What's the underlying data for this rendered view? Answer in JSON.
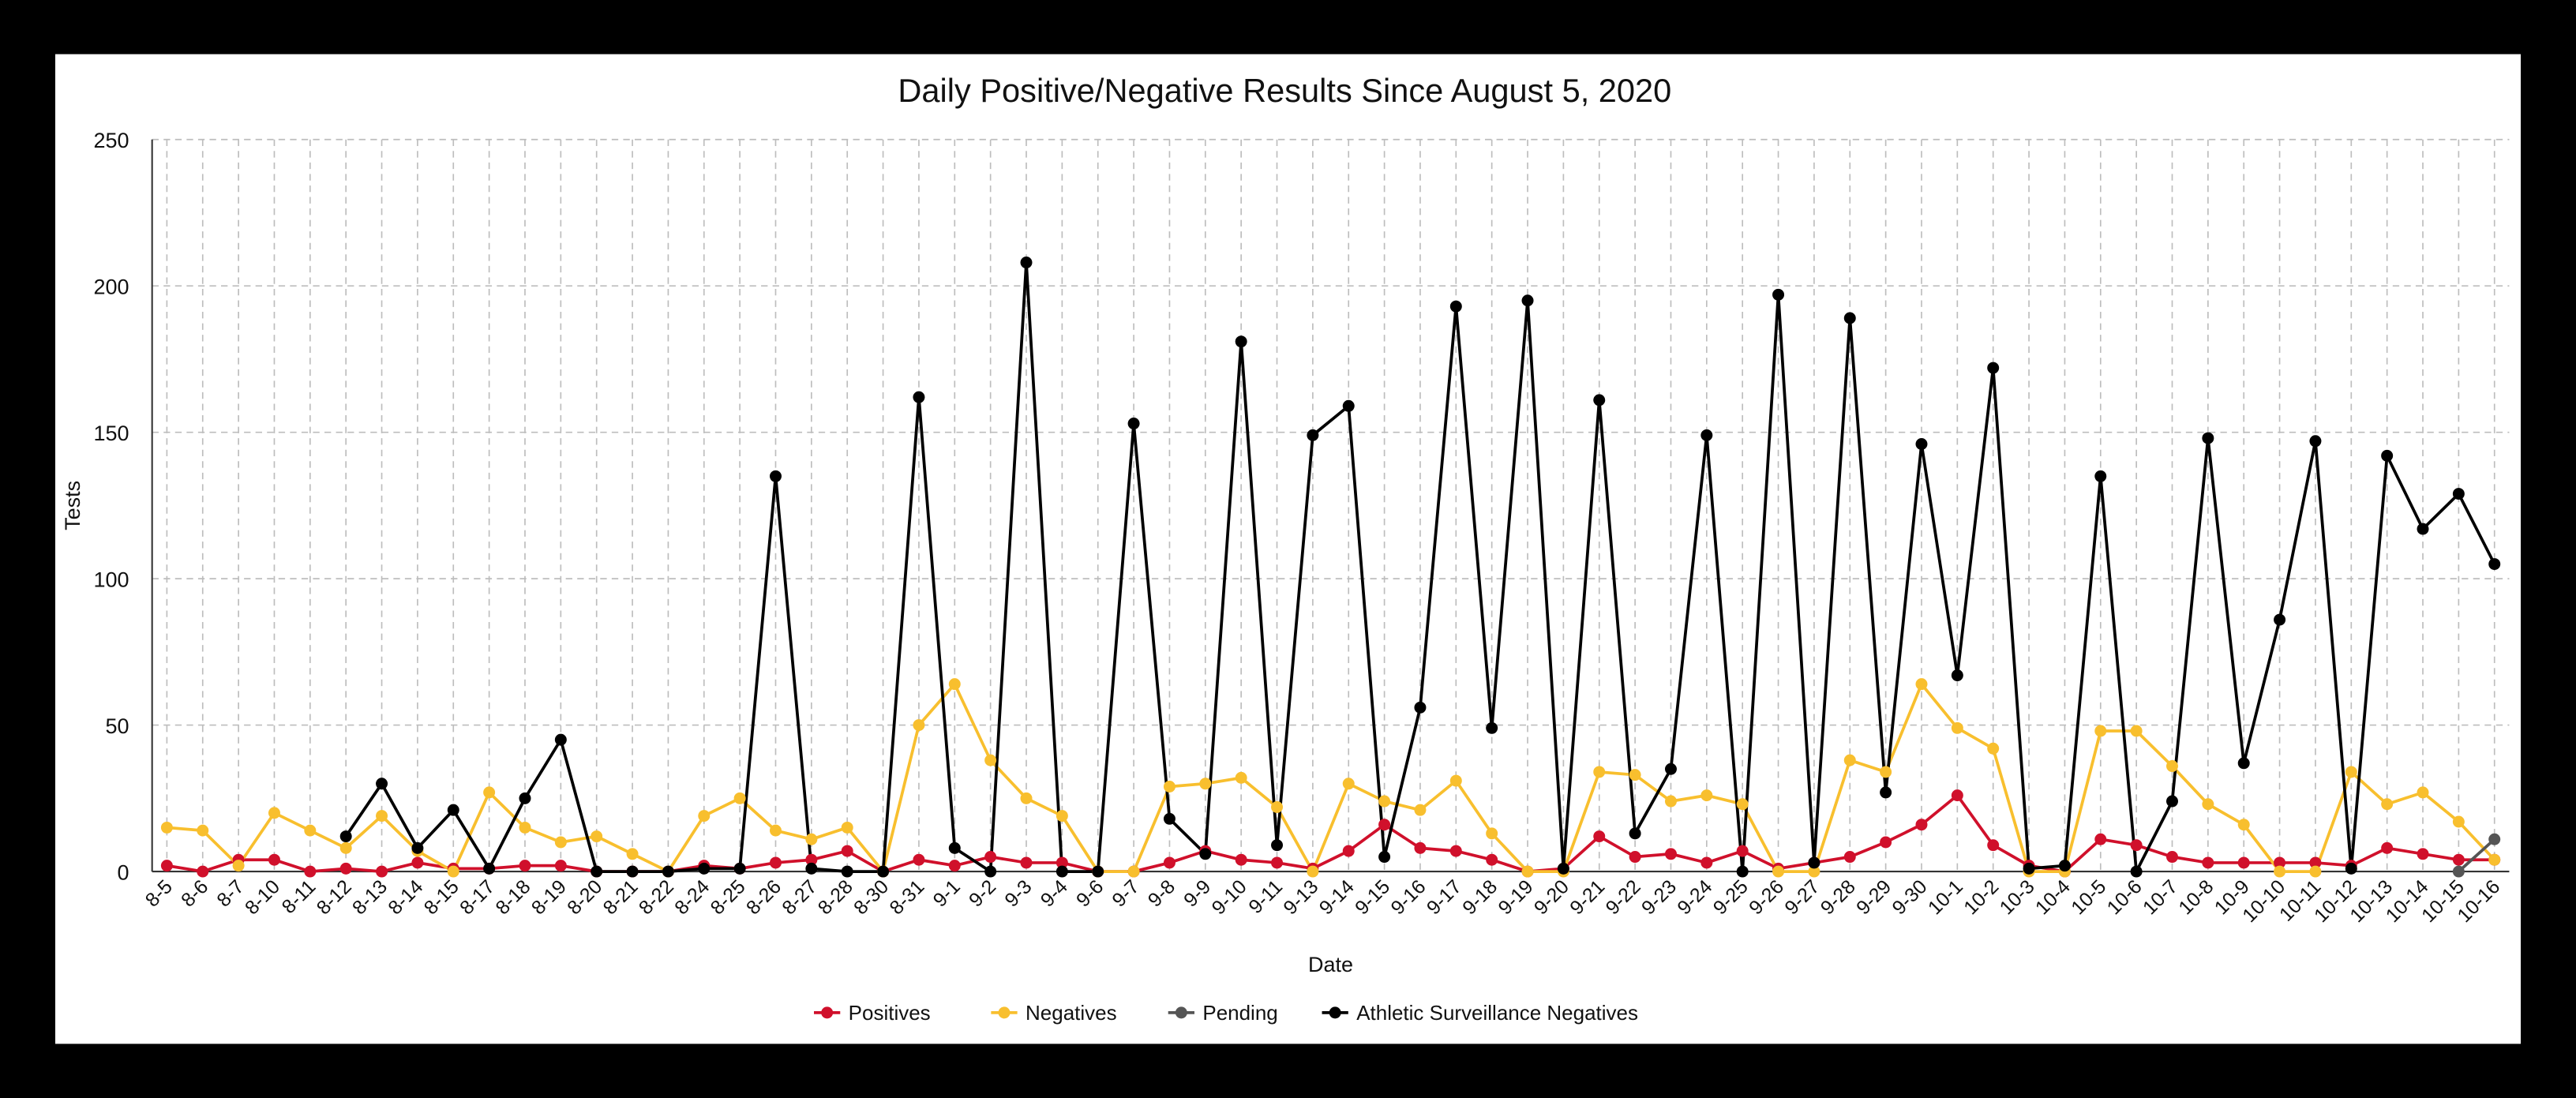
{
  "chart_data": {
    "type": "line",
    "title": "Daily Positive/Negative Results Since August 5, 2020",
    "x_label": "Date",
    "y_label": "Tests",
    "categories": [
      "8-5",
      "8-6",
      "8-7",
      "8-10",
      "8-11",
      "8-12",
      "8-13",
      "8-14",
      "8-15",
      "8-17",
      "8-18",
      "8-19",
      "8-20",
      "8-21",
      "8-22",
      "8-24",
      "8-25",
      "8-26",
      "8-27",
      "8-28",
      "8-30",
      "8-31",
      "9-1",
      "9-2",
      "9-3",
      "9-4",
      "9-6",
      "9-7",
      "9-8",
      "9-9",
      "9-10",
      "9-11",
      "9-13",
      "9-14",
      "9-15",
      "9-16",
      "9-17",
      "9-18",
      "9-19",
      "9-20",
      "9-21",
      "9-22",
      "9-23",
      "9-24",
      "9-25",
      "9-26",
      "9-27",
      "9-28",
      "9-29",
      "9-30",
      "10-1",
      "10-2",
      "10-3",
      "10-4",
      "10-5",
      "10-6",
      "10-7",
      "10-8",
      "10-9",
      "10-10",
      "10-11",
      "10-12",
      "10-13",
      "10-14",
      "10-15",
      "10-16"
    ],
    "series": [
      {
        "name": "Positives",
        "color": "#d0102b",
        "values": [
          2,
          0,
          4,
          4,
          0,
          1,
          0,
          3,
          1,
          1,
          2,
          2,
          0,
          0,
          0,
          2,
          1,
          3,
          4,
          7,
          0,
          4,
          2,
          5,
          3,
          3,
          0,
          0,
          3,
          7,
          4,
          3,
          1,
          7,
          16,
          8,
          7,
          4,
          0,
          1,
          12,
          5,
          6,
          3,
          7,
          1,
          3,
          5,
          10,
          16,
          26,
          9,
          2,
          0,
          11,
          9,
          5,
          3,
          3,
          3,
          3,
          2,
          8,
          6,
          4,
          4
        ]
      },
      {
        "name": "Negatives",
        "color": "#f8bf2e",
        "values": [
          15,
          14,
          2,
          20,
          14,
          8,
          19,
          7,
          0,
          27,
          15,
          10,
          12,
          6,
          0,
          19,
          25,
          14,
          11,
          15,
          0,
          50,
          64,
          38,
          25,
          19,
          0,
          0,
          29,
          30,
          32,
          22,
          0,
          30,
          24,
          21,
          31,
          13,
          0,
          0,
          34,
          33,
          24,
          26,
          23,
          0,
          0,
          38,
          34,
          64,
          49,
          42,
          0,
          0,
          48,
          48,
          36,
          23,
          16,
          0,
          0,
          34,
          23,
          27,
          17,
          4
        ]
      },
      {
        "name": "Pending",
        "color": "#555555",
        "values": [
          null,
          null,
          null,
          null,
          null,
          null,
          null,
          null,
          null,
          null,
          null,
          null,
          null,
          null,
          null,
          null,
          null,
          null,
          null,
          null,
          null,
          null,
          null,
          null,
          null,
          null,
          null,
          null,
          null,
          null,
          null,
          null,
          null,
          null,
          null,
          null,
          null,
          null,
          null,
          null,
          null,
          null,
          null,
          null,
          null,
          null,
          null,
          null,
          null,
          null,
          null,
          null,
          null,
          null,
          null,
          null,
          null,
          null,
          null,
          null,
          null,
          null,
          null,
          null,
          0,
          11
        ]
      },
      {
        "name": "Athletic Surveillance Negatives",
        "color": "#000000",
        "values": [
          null,
          null,
          null,
          null,
          null,
          12,
          30,
          8,
          21,
          1,
          25,
          45,
          0,
          0,
          0,
          1,
          1,
          135,
          1,
          0,
          0,
          162,
          8,
          0,
          208,
          0,
          0,
          153,
          18,
          6,
          181,
          9,
          149,
          159,
          5,
          56,
          193,
          49,
          195,
          1,
          161,
          13,
          35,
          149,
          0,
          197,
          3,
          189,
          27,
          146,
          67,
          172,
          1,
          2,
          135,
          0,
          24,
          148,
          37,
          86,
          147,
          1,
          142,
          117,
          129,
          105
        ]
      }
    ],
    "ylim": [
      0,
      250
    ],
    "yticks": [
      0,
      50,
      100,
      150,
      200,
      250
    ],
    "grid": true,
    "legend": "bottom"
  }
}
